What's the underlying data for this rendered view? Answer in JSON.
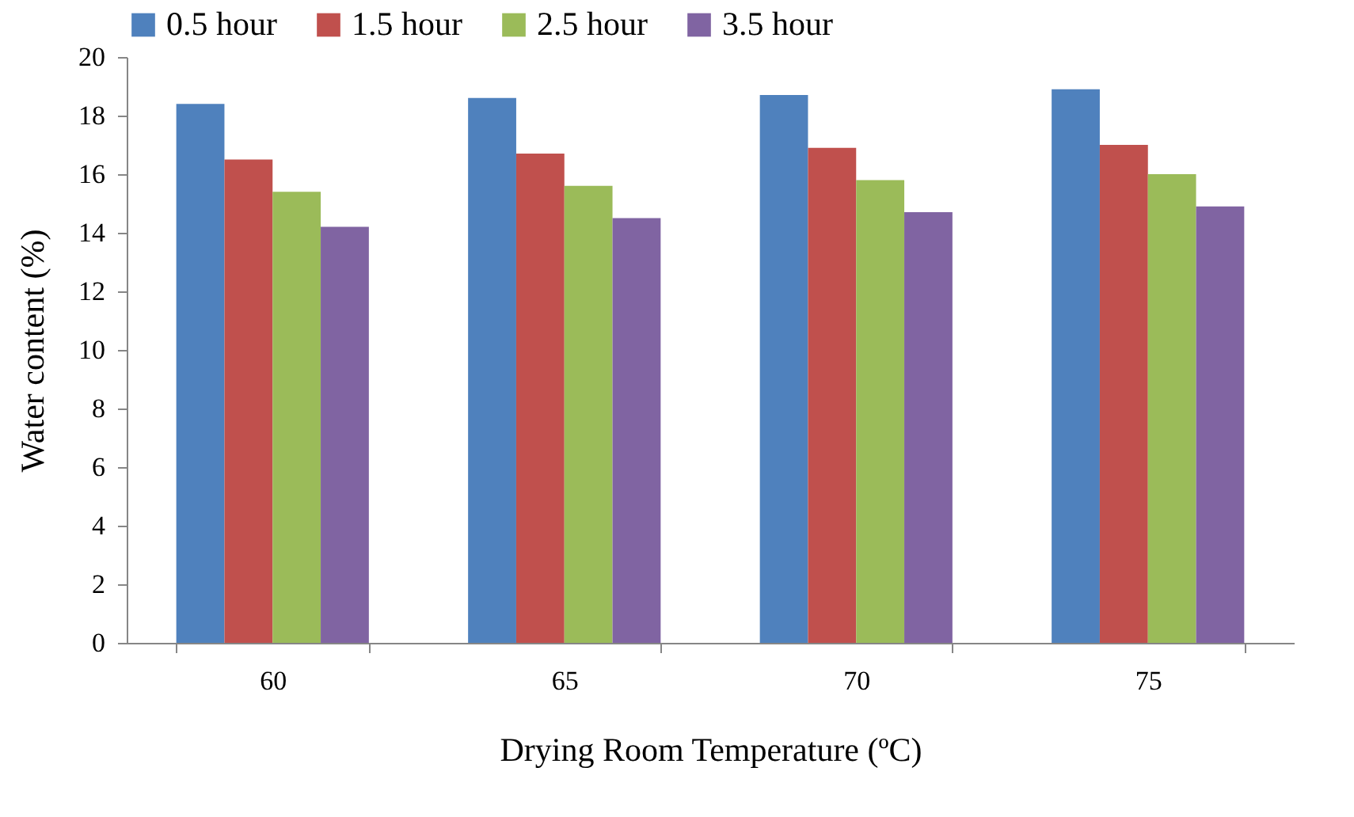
{
  "chart_data": {
    "type": "bar",
    "xlabel": "Drying Room Temperature (ºC)",
    "ylabel": "Water content (%)",
    "categories": [
      "60",
      "65",
      "70",
      "75"
    ],
    "series": [
      {
        "name": "0.5 hour",
        "color": "#4f81bd",
        "values": [
          18.4,
          18.6,
          18.7,
          18.9
        ]
      },
      {
        "name": "1.5 hour",
        "color": "#c0504d",
        "values": [
          16.5,
          16.7,
          16.9,
          17.0
        ]
      },
      {
        "name": "2.5 hour",
        "color": "#9bbb59",
        "values": [
          15.4,
          15.6,
          15.8,
          16.0
        ]
      },
      {
        "name": "3.5 hour",
        "color": "#8064a2",
        "values": [
          14.2,
          14.5,
          14.7,
          14.9
        ]
      }
    ],
    "ylim": [
      0,
      20
    ],
    "yticks": [
      0,
      2,
      4,
      6,
      8,
      10,
      12,
      14,
      16,
      18,
      20
    ],
    "grid": false,
    "legend": "top"
  }
}
